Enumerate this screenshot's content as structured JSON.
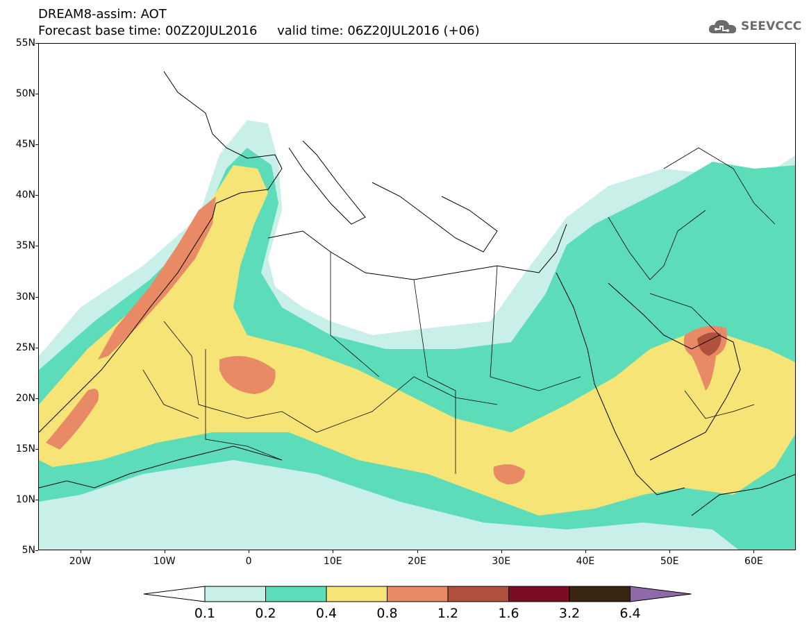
{
  "header": {
    "title": "DREAM8-assim: AOT",
    "base_time_label": "Forecast base time:",
    "base_time": "00Z20JUL2016",
    "valid_time_label": "valid time:",
    "valid_time": "06Z20JUL2016 (+06)"
  },
  "logo": {
    "text": "SEEVCCC",
    "icon": "cloud-icon",
    "color": "#6b6b6b"
  },
  "map": {
    "lon_range": [
      -25,
      65
    ],
    "lat_range": [
      5,
      55
    ],
    "lat_ticks": [
      "5N",
      "10N",
      "15N",
      "20N",
      "25N",
      "30N",
      "35N",
      "40N",
      "45N",
      "50N",
      "55N"
    ],
    "lat_values": [
      5,
      10,
      15,
      20,
      25,
      30,
      35,
      40,
      45,
      50,
      55
    ],
    "lon_ticks": [
      "20W",
      "10W",
      "0",
      "10E",
      "20E",
      "30E",
      "40E",
      "50E",
      "60E"
    ],
    "lon_values": [
      -20,
      -10,
      0,
      10,
      20,
      30,
      40,
      50,
      60
    ]
  },
  "colorbar": {
    "thresholds": [
      "0.1",
      "0.2",
      "0.4",
      "0.8",
      "1.2",
      "1.6",
      "3.2",
      "6.4"
    ],
    "colors": [
      "#ffffff",
      "#c8f0e8",
      "#5cdcb8",
      "#f6e476",
      "#e98a66",
      "#b0503e",
      "#7c0c24",
      "#3a2412",
      "#8e6aa8"
    ]
  }
}
